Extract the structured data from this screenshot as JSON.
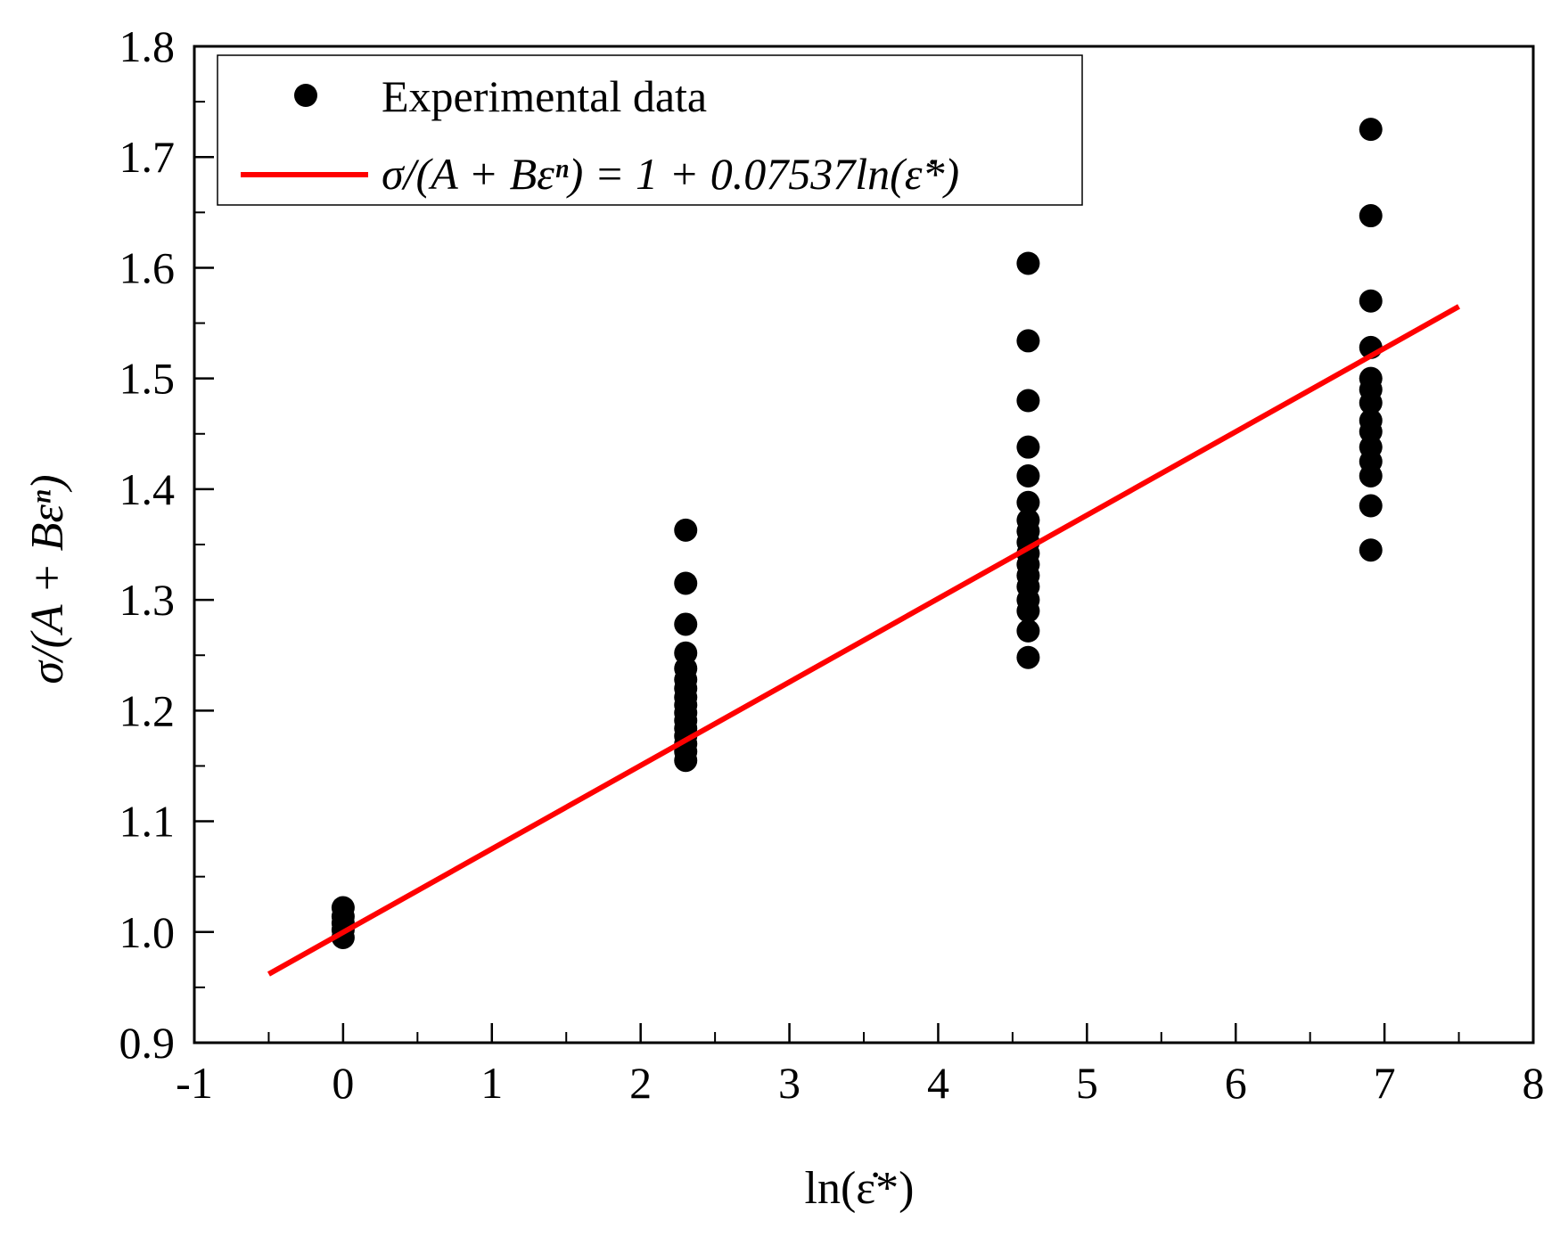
{
  "chart_data": {
    "type": "scatter",
    "title": "",
    "xlabel": "ln(ε̇*)",
    "ylabel": "σ/(A + Bεⁿ)",
    "xlim": [
      -1,
      8
    ],
    "ylim": [
      0.9,
      1.8
    ],
    "xticks": [
      "-1",
      "0",
      "1",
      "2",
      "3",
      "4",
      "5",
      "6",
      "7",
      "8"
    ],
    "yticks": [
      "0.9",
      "1.0",
      "1.1",
      "1.2",
      "1.3",
      "1.4",
      "1.5",
      "1.6",
      "1.7",
      "1.8"
    ],
    "grid": false,
    "legend_position": "top-left",
    "series": [
      {
        "name": "Experimental data",
        "kind": "scatter",
        "color": "#000000",
        "points": [
          [
            0,
            0.995
          ],
          [
            0,
            1.002
          ],
          [
            0,
            1.008
          ],
          [
            0,
            1.014
          ],
          [
            0,
            1.022
          ],
          [
            2.303,
            1.155
          ],
          [
            2.303,
            1.163
          ],
          [
            2.303,
            1.17
          ],
          [
            2.303,
            1.177
          ],
          [
            2.303,
            1.184
          ],
          [
            2.303,
            1.191
          ],
          [
            2.303,
            1.198
          ],
          [
            2.303,
            1.205
          ],
          [
            2.303,
            1.212
          ],
          [
            2.303,
            1.22
          ],
          [
            2.303,
            1.228
          ],
          [
            2.303,
            1.238
          ],
          [
            2.303,
            1.252
          ],
          [
            2.303,
            1.278
          ],
          [
            2.303,
            1.315
          ],
          [
            2.303,
            1.363
          ],
          [
            4.605,
            1.248
          ],
          [
            4.605,
            1.272
          ],
          [
            4.605,
            1.29
          ],
          [
            4.605,
            1.3
          ],
          [
            4.605,
            1.312
          ],
          [
            4.605,
            1.322
          ],
          [
            4.605,
            1.332
          ],
          [
            4.605,
            1.342
          ],
          [
            4.605,
            1.352
          ],
          [
            4.605,
            1.362
          ],
          [
            4.605,
            1.372
          ],
          [
            4.605,
            1.388
          ],
          [
            4.605,
            1.412
          ],
          [
            4.605,
            1.438
          ],
          [
            4.605,
            1.48
          ],
          [
            4.605,
            1.534
          ],
          [
            4.605,
            1.604
          ],
          [
            6.908,
            1.345
          ],
          [
            6.908,
            1.385
          ],
          [
            6.908,
            1.412
          ],
          [
            6.908,
            1.425
          ],
          [
            6.908,
            1.438
          ],
          [
            6.908,
            1.452
          ],
          [
            6.908,
            1.462
          ],
          [
            6.908,
            1.478
          ],
          [
            6.908,
            1.49
          ],
          [
            6.908,
            1.5
          ],
          [
            6.908,
            1.528
          ],
          [
            6.908,
            1.57
          ],
          [
            6.908,
            1.647
          ],
          [
            6.908,
            1.725
          ]
        ]
      },
      {
        "name": "σ/(A + Bεⁿ) = 1 + 0.07537ln(ε̇*)",
        "kind": "line",
        "color": "#ff0000",
        "intercept": 1,
        "slope": 0.07537,
        "x": [
          -0.5,
          7.5
        ],
        "y": [
          0.962,
          1.565
        ]
      }
    ]
  }
}
